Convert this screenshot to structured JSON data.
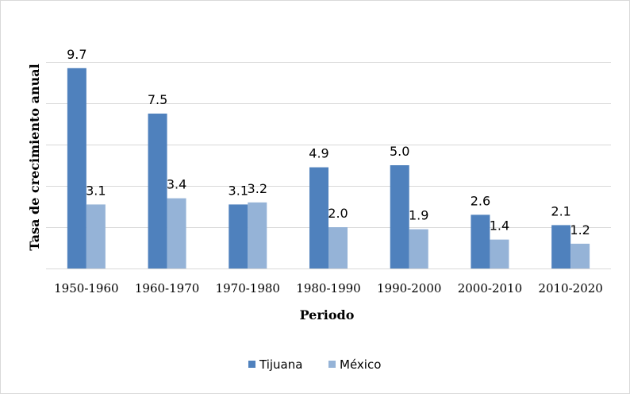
{
  "chart_data": {
    "type": "bar",
    "categories": [
      "1950-1960",
      "1960-1970",
      "1970-1980",
      "1980-1990",
      "1990-2000",
      "2000-2010",
      "2010-2020"
    ],
    "series": [
      {
        "name": "Tijuana",
        "values": [
          9.7,
          7.5,
          3.1,
          4.9,
          5.0,
          2.6,
          2.1
        ],
        "labels": [
          "9.7",
          "7.5",
          "3.1",
          "4.9",
          "5.0",
          "2.6",
          "2.1"
        ],
        "color": "#4f81bd"
      },
      {
        "name": "México",
        "values": [
          3.1,
          3.4,
          3.2,
          2.0,
          1.9,
          1.4,
          1.2
        ],
        "labels": [
          "3.1",
          "3.4",
          "3.2",
          "2.0",
          "1.9",
          "1.4",
          "1.2"
        ],
        "color": "#95b3d7"
      }
    ],
    "title": "",
    "xlabel": "Periodo",
    "ylabel": "Tasa de crecimiento anual",
    "ylim": [
      0,
      10
    ],
    "gridlines": [
      2,
      4,
      6,
      8,
      10
    ],
    "gridline_labels": [
      "",
      "",
      "",
      "",
      ""
    ],
    "grid": true,
    "legend_position": "bottom",
    "gridline_color": "#d9d9d9"
  }
}
